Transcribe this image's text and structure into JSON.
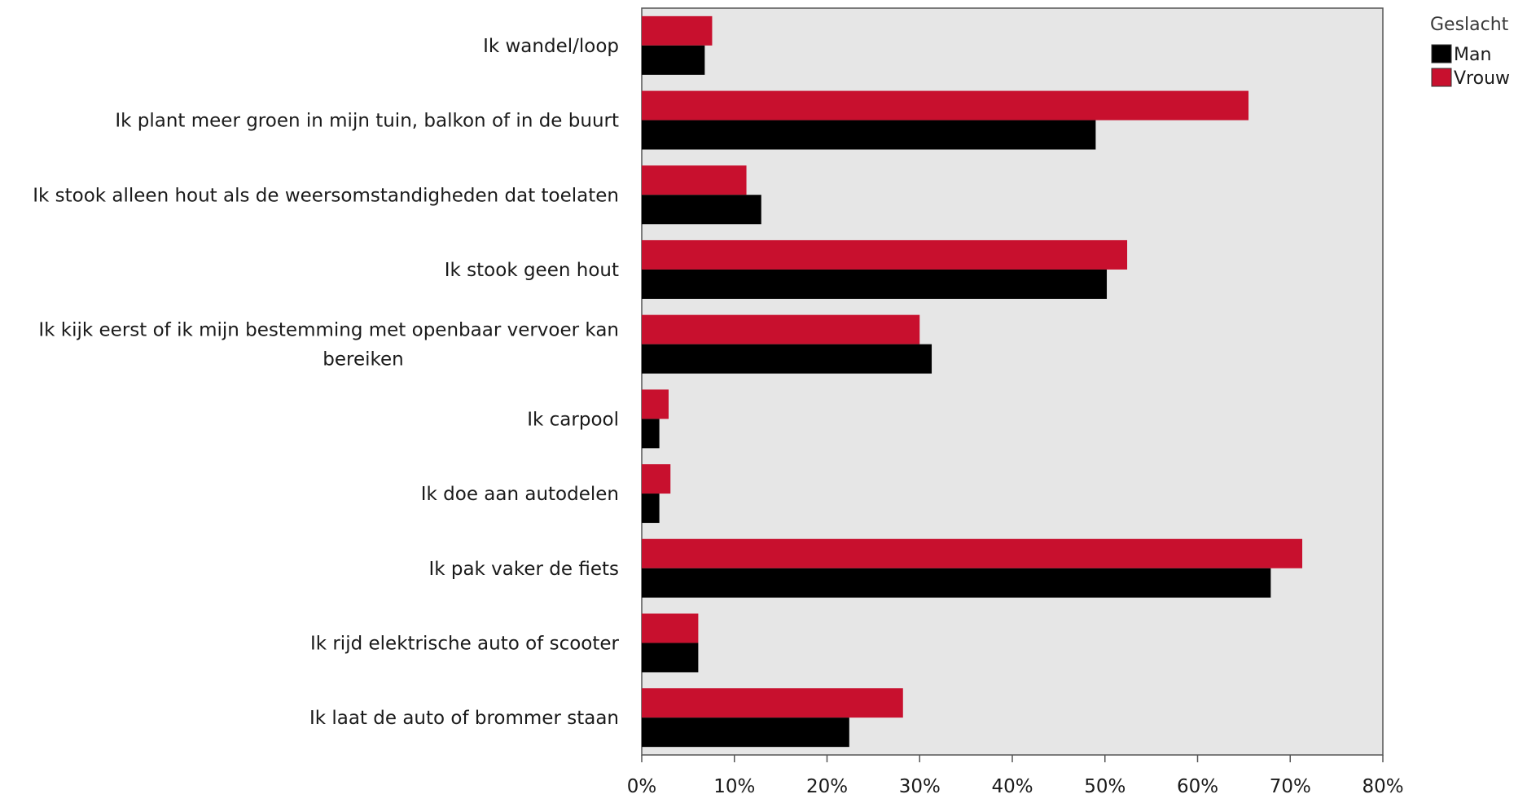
{
  "chart_data": {
    "type": "bar",
    "orientation": "horizontal",
    "categories": [
      "Ik wandel/loop",
      "Ik plant meer groen in mijn tuin, balkon of in de buurt",
      "Ik stook alleen hout als de weersomstandigheden dat toelaten",
      "Ik stook geen hout",
      "Ik kijk eerst of ik mijn bestemming met openbaar vervoer kan bereiken",
      "Ik carpool",
      "Ik doe aan autodelen",
      "Ik pak vaker de fiets",
      "Ik rijd elektrische auto of scooter",
      "Ik laat de auto of brommer staan"
    ],
    "category_lines": [
      [
        "Ik wandel/loop"
      ],
      [
        "Ik plant meer groen in mijn tuin, balkon of in de buurt"
      ],
      [
        "Ik stook alleen hout als de weersomstandigheden dat toelaten"
      ],
      [
        "Ik stook geen hout"
      ],
      [
        "Ik kijk eerst of ik mijn bestemming met openbaar vervoer kan",
        "bereiken"
      ],
      [
        "Ik carpool"
      ],
      [
        "Ik doe aan autodelen"
      ],
      [
        "Ik pak vaker de fiets"
      ],
      [
        "Ik rijd elektrische auto of scooter"
      ],
      [
        "Ik laat de auto of brommer staan"
      ]
    ],
    "series": [
      {
        "name": "Vrouw",
        "color": "#c8102e",
        "values": [
          7.6,
          65.5,
          11.3,
          52.4,
          30.0,
          2.9,
          3.1,
          71.3,
          6.1,
          28.2
        ]
      },
      {
        "name": "Man",
        "color": "#000000",
        "values": [
          6.8,
          49.0,
          12.9,
          50.2,
          31.3,
          1.9,
          1.9,
          67.9,
          6.1,
          22.4
        ]
      }
    ],
    "xlim": [
      0,
      80
    ],
    "xticks": [
      "0%",
      "10%",
      "20%",
      "30%",
      "40%",
      "50%",
      "60%",
      "70%",
      "80%"
    ],
    "xtick_values": [
      0,
      10,
      20,
      30,
      40,
      50,
      60,
      70,
      80
    ],
    "legend": {
      "title": "Geslacht",
      "placement": "top-right",
      "entries": [
        {
          "name": "Man",
          "color": "#000000"
        },
        {
          "name": "Vrouw",
          "color": "#c8102e"
        }
      ]
    },
    "plot_background": "#e6e6e6",
    "grid": false
  }
}
